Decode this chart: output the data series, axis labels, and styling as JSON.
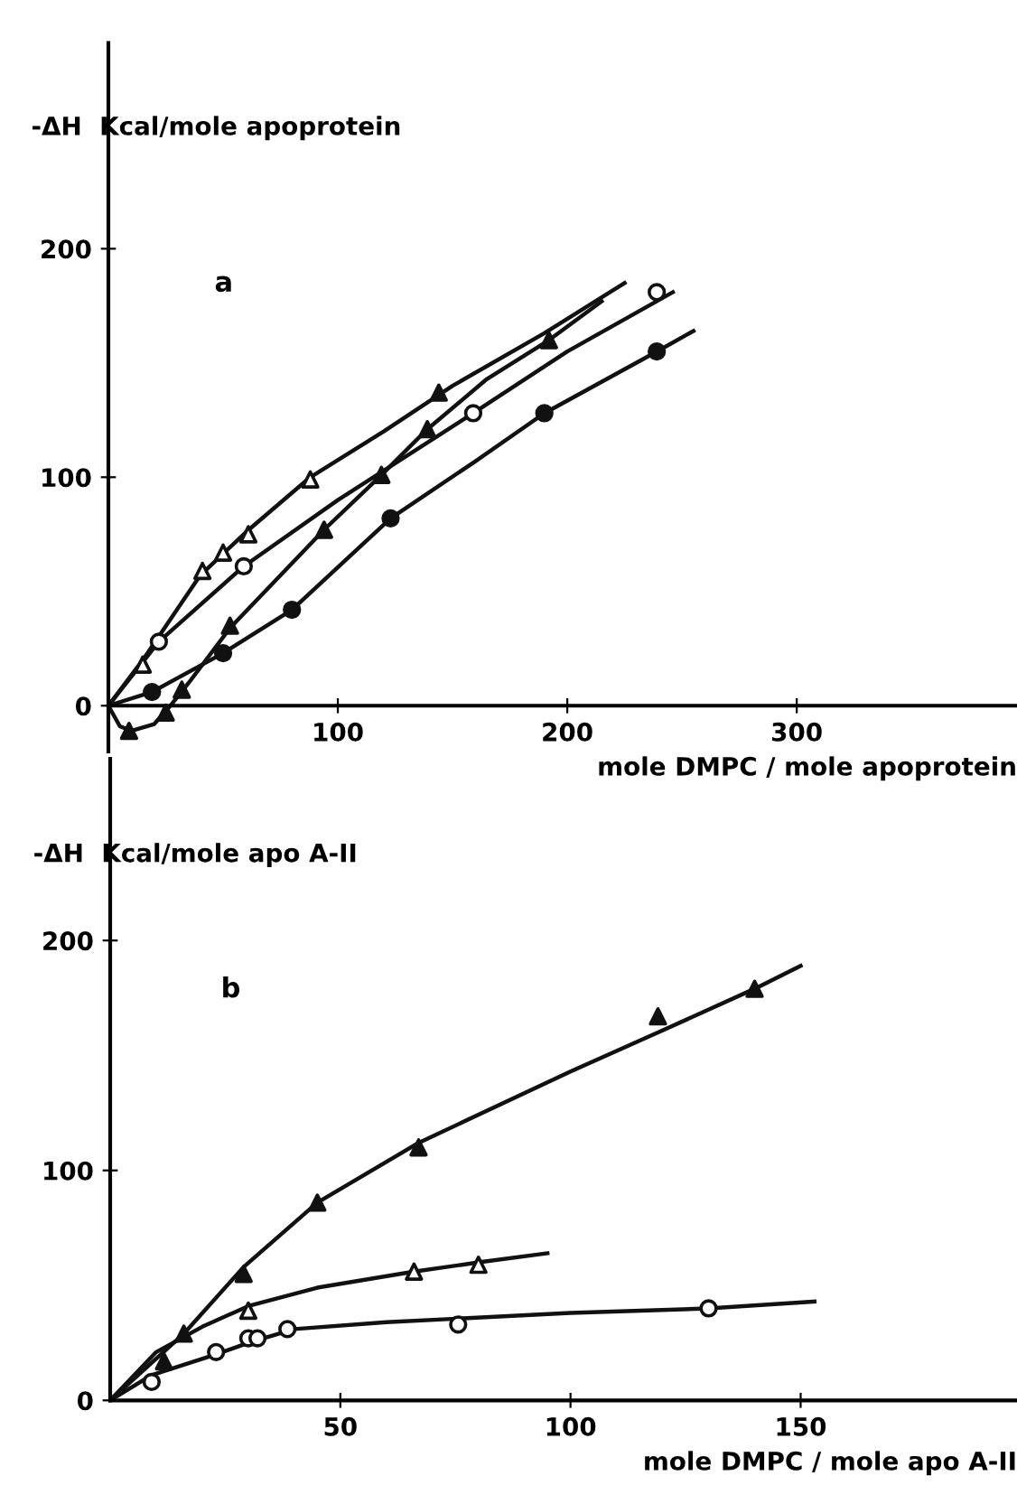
{
  "chart_data": [
    {
      "type": "line",
      "ylabel": "-ΔH  Kcal/mole apoprotein",
      "xlabel": "mole DMPC / mole apoprotein",
      "annotations": [
        "a"
      ],
      "xlim": [
        0,
        396
      ],
      "ylim": [
        -20,
        290
      ],
      "xticks": [
        100,
        200,
        300
      ],
      "yticks": [
        0,
        100,
        200
      ],
      "grid": false,
      "legend": false,
      "series": [
        {
          "color": "#111111",
          "marker": "none",
          "x": [
            0,
            15,
            40,
            60,
            88,
            120,
            150,
            190,
            225
          ],
          "values": [
            0,
            20,
            57,
            76,
            100,
            120,
            140,
            163,
            185
          ]
        },
        {
          "color": "#111111",
          "marker": "none",
          "x": [
            0,
            5,
            10,
            20,
            27,
            35,
            53,
            94,
            119,
            139,
            165,
            192,
            215
          ],
          "values": [
            0,
            -9,
            -11,
            -8,
            0,
            10,
            34,
            77,
            101,
            121,
            143,
            160,
            177
          ]
        },
        {
          "color": "#111111",
          "marker": "none",
          "x": [
            0,
            22,
            59,
            100,
            159,
            200,
            246
          ],
          "values": [
            0,
            28,
            61,
            90,
            128,
            155,
            181
          ]
        },
        {
          "color": "#111111",
          "marker": "none",
          "x": [
            0,
            19,
            50,
            80,
            123,
            160,
            190,
            239,
            255
          ],
          "values": [
            0,
            6,
            23,
            42,
            82,
            107,
            128,
            155,
            164
          ]
        },
        {
          "type": "scatter",
          "color": "#111111",
          "marker": "triangle",
          "x": [
            15,
            41,
            50,
            61,
            88,
            144,
            9,
            25,
            32,
            53,
            94,
            119,
            139,
            192
          ],
          "values": [
            18,
            59,
            67,
            75,
            99,
            137,
            -11,
            -3,
            7,
            35,
            77,
            101,
            121,
            160
          ],
          "colors": [
            "#ffffff",
            "#ffffff",
            "#ffffff",
            "#ffffff",
            "#ffffff",
            "#111111",
            "#111111",
            "#111111",
            "#111111",
            "#111111",
            "#111111",
            "#111111",
            "#111111",
            "#111111"
          ]
        },
        {
          "type": "scatter",
          "color": "#111111",
          "marker": "circle",
          "x": [
            22,
            59,
            159,
            239,
            19,
            50,
            80,
            123,
            190,
            239
          ],
          "values": [
            28,
            61,
            128,
            181,
            6,
            23,
            42,
            82,
            128,
            155
          ],
          "colors": [
            "#ffffff",
            "#ffffff",
            "#ffffff",
            "#ffffff",
            "#111111",
            "#111111",
            "#111111",
            "#111111",
            "#111111",
            "#111111"
          ]
        }
      ]
    },
    {
      "type": "line",
      "ylabel": "-ΔH  Kcal/mole apo A-II",
      "xlabel": "mole DMPC / mole apo A-II",
      "annotations": [
        "b"
      ],
      "xlim": [
        0,
        197
      ],
      "ylim": [
        0,
        279
      ],
      "xticks": [
        50,
        100,
        150
      ],
      "yticks": [
        0,
        100,
        200
      ],
      "grid": false,
      "legend": false,
      "series": [
        {
          "color": "#111111",
          "marker": "none",
          "x": [
            0,
            16,
            29,
            45,
            67,
            100,
            119,
            140,
            150
          ],
          "values": [
            0,
            29,
            58,
            86,
            112,
            143,
            160,
            179,
            189
          ]
        },
        {
          "color": "#111111",
          "marker": "none",
          "x": [
            0,
            10,
            20,
            30,
            45,
            66,
            80,
            95
          ],
          "values": [
            0,
            21,
            32,
            41,
            49,
            56,
            60,
            64
          ]
        },
        {
          "color": "#111111",
          "marker": "none",
          "x": [
            0,
            9,
            23,
            30,
            40,
            60,
            100,
            130,
            153
          ],
          "values": [
            0,
            11,
            20,
            25,
            31,
            34,
            38,
            40,
            43
          ]
        },
        {
          "type": "scatter",
          "color": "#111111",
          "marker": "triangle",
          "x": [
            11.7,
            16,
            29,
            45,
            67,
            119,
            140,
            30,
            66,
            80
          ],
          "values": [
            17,
            29,
            55,
            86,
            110,
            167,
            179,
            39,
            56,
            59
          ],
          "colors": [
            "#111111",
            "#111111",
            "#111111",
            "#111111",
            "#111111",
            "#111111",
            "#111111",
            "#ffffff",
            "#ffffff",
            "#ffffff"
          ]
        },
        {
          "type": "scatter",
          "color": "#111111",
          "marker": "circle",
          "x": [
            9,
            23,
            30,
            32,
            38.5,
            75.6,
            130
          ],
          "values": [
            8,
            21,
            27,
            27,
            31,
            33,
            40
          ],
          "colors": [
            "#ffffff",
            "#ffffff",
            "#ffffff",
            "#ffffff",
            "#ffffff",
            "#ffffff",
            "#ffffff"
          ]
        }
      ]
    }
  ]
}
